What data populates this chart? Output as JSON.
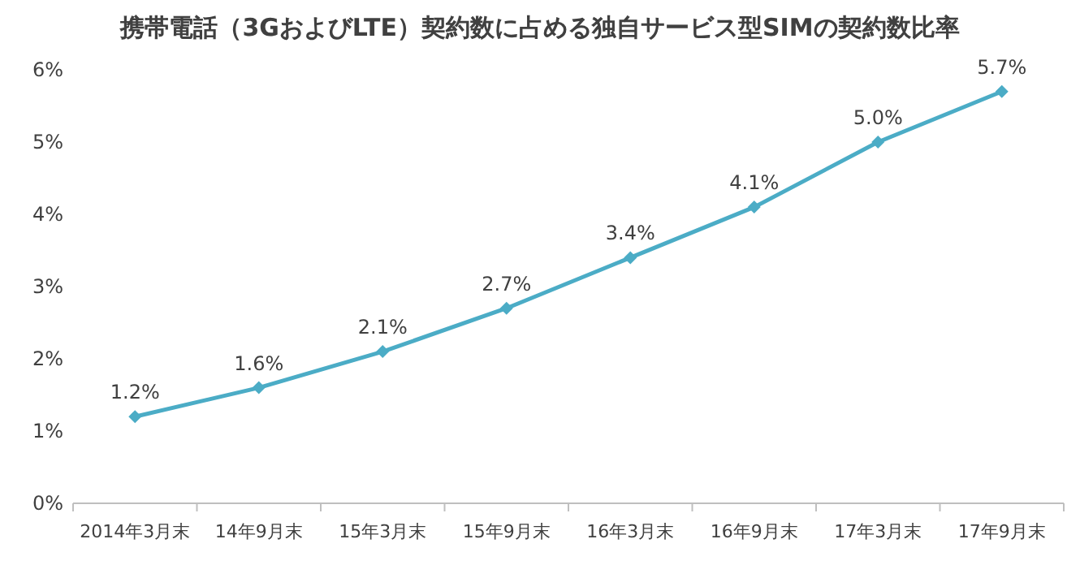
{
  "chart_data": {
    "type": "line",
    "title": "携帯電話（3GおよびLTE）契約数に占める独自サービス型SIMの契約数比率",
    "categories": [
      "2014年3月末",
      "14年9月末",
      "15年3月末",
      "15年9月末",
      "16年3月末",
      "16年9月末",
      "17年3月末",
      "17年9月末"
    ],
    "series": [
      {
        "color": "#4bacc6",
        "values": [
          1.2,
          1.6,
          2.1,
          2.7,
          3.4,
          4.1,
          5.0,
          5.7
        ],
        "value_labels": [
          "1.2%",
          "1.6%",
          "2.1%",
          "2.7%",
          "3.4%",
          "4.1%",
          "5.0%",
          "5.7%"
        ]
      }
    ],
    "ylim": [
      0,
      6
    ],
    "yticks": [
      {
        "value": 0,
        "label": "0%"
      },
      {
        "value": 1,
        "label": "1%"
      },
      {
        "value": 2,
        "label": "2%"
      },
      {
        "value": 3,
        "label": "3%"
      },
      {
        "value": 4,
        "label": "4%"
      },
      {
        "value": 5,
        "label": "5%"
      },
      {
        "value": 6,
        "label": "6%"
      }
    ],
    "marker": "diamond",
    "line_style": "solid"
  }
}
